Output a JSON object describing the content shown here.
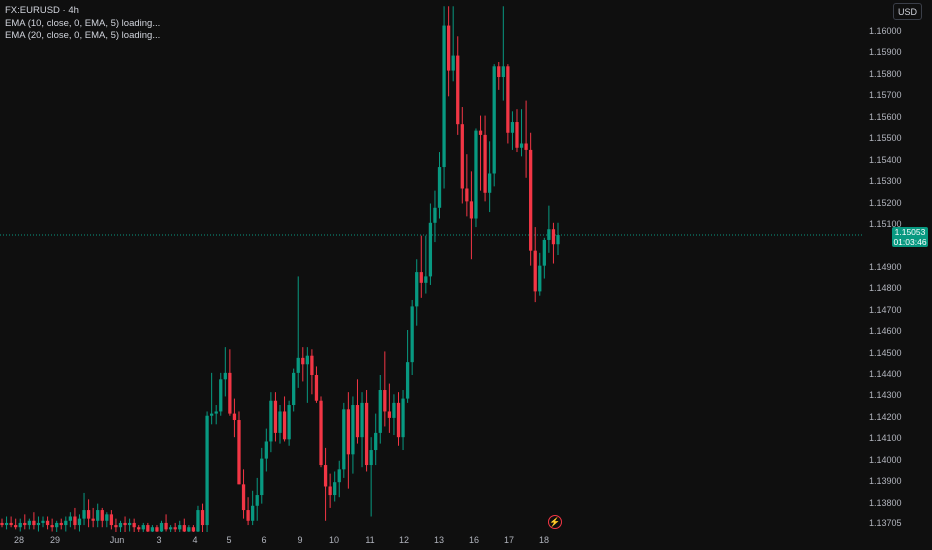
{
  "legend": {
    "symbol": "FX:EURUSD · 4h",
    "ema1": "EMA (10, close, 0, EMA, 5) loading...",
    "ema2": "EMA (20, close, 0, EMA, 5) loading..."
  },
  "currency_button": "USD",
  "last_price": {
    "value": "1.15053",
    "countdown": "01:03:46"
  },
  "colors": {
    "up": "#089981",
    "down": "#f23645",
    "background": "#0f0f0f",
    "price_line": "#089981"
  },
  "price_axis": [
    "1.16000",
    "1.15900",
    "1.15800",
    "1.15700",
    "1.15600",
    "1.15500",
    "1.15400",
    "1.15300",
    "1.15200",
    "1.15100",
    "1.14900",
    "1.14800",
    "1.14700",
    "1.14600",
    "1.14500",
    "1.14400",
    "1.14300",
    "1.14200",
    "1.14100",
    "1.14000",
    "1.13900",
    "1.13800",
    "1.13705"
  ],
  "time_axis": [
    "28",
    "29",
    "Jun",
    "3",
    "4",
    "5",
    "6",
    "9",
    "10",
    "11",
    "12",
    "13",
    "16",
    "17",
    "18"
  ],
  "icons": {
    "flash": "lightning-bolt-icon"
  },
  "chart_data": {
    "type": "candlestick",
    "symbol": "FX:EURUSD",
    "interval": "4h",
    "ylim": [
      1.1365,
      1.1612
    ],
    "last": 1.15053,
    "candles": [
      {
        "o": 1.1371,
        "h": 1.1373,
        "l": 1.1369,
        "c": 1.137
      },
      {
        "o": 1.137,
        "h": 1.1374,
        "l": 1.1368,
        "c": 1.1371
      },
      {
        "o": 1.1371,
        "h": 1.1374,
        "l": 1.1369,
        "c": 1.137
      },
      {
        "o": 1.137,
        "h": 1.1373,
        "l": 1.1368,
        "c": 1.1369
      },
      {
        "o": 1.1369,
        "h": 1.1373,
        "l": 1.1367,
        "c": 1.1371
      },
      {
        "o": 1.1371,
        "h": 1.1375,
        "l": 1.1368,
        "c": 1.137
      },
      {
        "o": 1.137,
        "h": 1.1373,
        "l": 1.1368,
        "c": 1.1372
      },
      {
        "o": 1.1372,
        "h": 1.1376,
        "l": 1.1368,
        "c": 1.137
      },
      {
        "o": 1.137,
        "h": 1.1374,
        "l": 1.1367,
        "c": 1.1371
      },
      {
        "o": 1.1371,
        "h": 1.1374,
        "l": 1.1369,
        "c": 1.1372
      },
      {
        "o": 1.1372,
        "h": 1.1374,
        "l": 1.1368,
        "c": 1.137
      },
      {
        "o": 1.137,
        "h": 1.1373,
        "l": 1.1367,
        "c": 1.1369
      },
      {
        "o": 1.1369,
        "h": 1.1372,
        "l": 1.1366,
        "c": 1.1371
      },
      {
        "o": 1.1371,
        "h": 1.1373,
        "l": 1.1368,
        "c": 1.137
      },
      {
        "o": 1.137,
        "h": 1.1374,
        "l": 1.1367,
        "c": 1.1372
      },
      {
        "o": 1.1372,
        "h": 1.1376,
        "l": 1.1369,
        "c": 1.1374
      },
      {
        "o": 1.1374,
        "h": 1.1378,
        "l": 1.1368,
        "c": 1.137
      },
      {
        "o": 1.137,
        "h": 1.1375,
        "l": 1.1367,
        "c": 1.1373
      },
      {
        "o": 1.1373,
        "h": 1.1385,
        "l": 1.137,
        "c": 1.1377
      },
      {
        "o": 1.1377,
        "h": 1.1382,
        "l": 1.1369,
        "c": 1.1373
      },
      {
        "o": 1.1373,
        "h": 1.1378,
        "l": 1.1369,
        "c": 1.1372
      },
      {
        "o": 1.1372,
        "h": 1.138,
        "l": 1.1369,
        "c": 1.1377
      },
      {
        "o": 1.1377,
        "h": 1.1378,
        "l": 1.1369,
        "c": 1.1372
      },
      {
        "o": 1.1372,
        "h": 1.1376,
        "l": 1.1369,
        "c": 1.1375
      },
      {
        "o": 1.1375,
        "h": 1.1377,
        "l": 1.1368,
        "c": 1.137
      },
      {
        "o": 1.137,
        "h": 1.1373,
        "l": 1.1366,
        "c": 1.1369
      },
      {
        "o": 1.1369,
        "h": 1.1372,
        "l": 1.1366,
        "c": 1.1371
      },
      {
        "o": 1.1371,
        "h": 1.1374,
        "l": 1.1366,
        "c": 1.137
      },
      {
        "o": 1.137,
        "h": 1.1373,
        "l": 1.1367,
        "c": 1.1371
      },
      {
        "o": 1.1371,
        "h": 1.1373,
        "l": 1.1366,
        "c": 1.1369
      },
      {
        "o": 1.1369,
        "h": 1.137,
        "l": 1.1366,
        "c": 1.1368
      },
      {
        "o": 1.1368,
        "h": 1.1371,
        "l": 1.1366,
        "c": 1.137
      },
      {
        "o": 1.137,
        "h": 1.1371,
        "l": 1.1366,
        "c": 1.1367
      },
      {
        "o": 1.1367,
        "h": 1.137,
        "l": 1.1366,
        "c": 1.1369
      },
      {
        "o": 1.1369,
        "h": 1.137,
        "l": 1.1366,
        "c": 1.1367
      },
      {
        "o": 1.1367,
        "h": 1.1372,
        "l": 1.1366,
        "c": 1.1371
      },
      {
        "o": 1.1371,
        "h": 1.1375,
        "l": 1.1367,
        "c": 1.1368
      },
      {
        "o": 1.1368,
        "h": 1.137,
        "l": 1.1366,
        "c": 1.1369
      },
      {
        "o": 1.1369,
        "h": 1.1371,
        "l": 1.1366,
        "c": 1.1368
      },
      {
        "o": 1.1368,
        "h": 1.1372,
        "l": 1.1366,
        "c": 1.137
      },
      {
        "o": 1.137,
        "h": 1.1373,
        "l": 1.1366,
        "c": 1.1367
      },
      {
        "o": 1.1367,
        "h": 1.137,
        "l": 1.1365,
        "c": 1.1369
      },
      {
        "o": 1.1369,
        "h": 1.137,
        "l": 1.1366,
        "c": 1.1367
      },
      {
        "o": 1.1367,
        "h": 1.1379,
        "l": 1.1366,
        "c": 1.1377
      },
      {
        "o": 1.1377,
        "h": 1.138,
        "l": 1.1366,
        "c": 1.137
      },
      {
        "o": 1.137,
        "h": 1.1423,
        "l": 1.1366,
        "c": 1.1421
      },
      {
        "o": 1.1421,
        "h": 1.1441,
        "l": 1.1417,
        "c": 1.1422
      },
      {
        "o": 1.1422,
        "h": 1.1426,
        "l": 1.1417,
        "c": 1.1423
      },
      {
        "o": 1.1423,
        "h": 1.1441,
        "l": 1.1421,
        "c": 1.1438
      },
      {
        "o": 1.1438,
        "h": 1.1453,
        "l": 1.143,
        "c": 1.1441
      },
      {
        "o": 1.1441,
        "h": 1.1452,
        "l": 1.1421,
        "c": 1.1422
      },
      {
        "o": 1.1422,
        "h": 1.1429,
        "l": 1.1411,
        "c": 1.1419
      },
      {
        "o": 1.1419,
        "h": 1.1423,
        "l": 1.1389,
        "c": 1.1389
      },
      {
        "o": 1.1389,
        "h": 1.1396,
        "l": 1.1373,
        "c": 1.1377
      },
      {
        "o": 1.1377,
        "h": 1.1383,
        "l": 1.137,
        "c": 1.1372
      },
      {
        "o": 1.1372,
        "h": 1.1386,
        "l": 1.137,
        "c": 1.1379
      },
      {
        "o": 1.1379,
        "h": 1.1392,
        "l": 1.1372,
        "c": 1.1384
      },
      {
        "o": 1.1384,
        "h": 1.1406,
        "l": 1.138,
        "c": 1.1401
      },
      {
        "o": 1.1401,
        "h": 1.1415,
        "l": 1.1395,
        "c": 1.1409
      },
      {
        "o": 1.1409,
        "h": 1.1432,
        "l": 1.1404,
        "c": 1.1428
      },
      {
        "o": 1.1428,
        "h": 1.1432,
        "l": 1.1409,
        "c": 1.1413
      },
      {
        "o": 1.1413,
        "h": 1.1426,
        "l": 1.1408,
        "c": 1.1423
      },
      {
        "o": 1.1423,
        "h": 1.143,
        "l": 1.1409,
        "c": 1.141
      },
      {
        "o": 1.141,
        "h": 1.1428,
        "l": 1.1407,
        "c": 1.1426
      },
      {
        "o": 1.1426,
        "h": 1.1443,
        "l": 1.1423,
        "c": 1.1441
      },
      {
        "o": 1.1441,
        "h": 1.1486,
        "l": 1.1434,
        "c": 1.1448
      },
      {
        "o": 1.1448,
        "h": 1.1453,
        "l": 1.1437,
        "c": 1.1445
      },
      {
        "o": 1.1445,
        "h": 1.1453,
        "l": 1.1427,
        "c": 1.1449
      },
      {
        "o": 1.1449,
        "h": 1.1452,
        "l": 1.1431,
        "c": 1.144
      },
      {
        "o": 1.144,
        "h": 1.1444,
        "l": 1.1427,
        "c": 1.1428
      },
      {
        "o": 1.1428,
        "h": 1.143,
        "l": 1.1397,
        "c": 1.1398
      },
      {
        "o": 1.1398,
        "h": 1.1406,
        "l": 1.1372,
        "c": 1.1388
      },
      {
        "o": 1.1388,
        "h": 1.1394,
        "l": 1.1378,
        "c": 1.1384
      },
      {
        "o": 1.1384,
        "h": 1.1395,
        "l": 1.1381,
        "c": 1.139
      },
      {
        "o": 1.139,
        "h": 1.14,
        "l": 1.1383,
        "c": 1.1396
      },
      {
        "o": 1.1396,
        "h": 1.1427,
        "l": 1.1392,
        "c": 1.1424
      },
      {
        "o": 1.1424,
        "h": 1.1432,
        "l": 1.1387,
        "c": 1.1403
      },
      {
        "o": 1.1403,
        "h": 1.143,
        "l": 1.1394,
        "c": 1.1426
      },
      {
        "o": 1.1426,
        "h": 1.1438,
        "l": 1.1408,
        "c": 1.1411
      },
      {
        "o": 1.1411,
        "h": 1.1432,
        "l": 1.1397,
        "c": 1.1427
      },
      {
        "o": 1.1427,
        "h": 1.1433,
        "l": 1.1395,
        "c": 1.1398
      },
      {
        "o": 1.1398,
        "h": 1.1411,
        "l": 1.1374,
        "c": 1.1405
      },
      {
        "o": 1.1405,
        "h": 1.1422,
        "l": 1.1398,
        "c": 1.1413
      },
      {
        "o": 1.1413,
        "h": 1.144,
        "l": 1.1408,
        "c": 1.1433
      },
      {
        "o": 1.1433,
        "h": 1.1451,
        "l": 1.1416,
        "c": 1.1423
      },
      {
        "o": 1.1423,
        "h": 1.1436,
        "l": 1.1413,
        "c": 1.142
      },
      {
        "o": 1.142,
        "h": 1.1431,
        "l": 1.1412,
        "c": 1.1427
      },
      {
        "o": 1.1427,
        "h": 1.1432,
        "l": 1.1407,
        "c": 1.1411
      },
      {
        "o": 1.1411,
        "h": 1.1433,
        "l": 1.1405,
        "c": 1.1429
      },
      {
        "o": 1.1429,
        "h": 1.1461,
        "l": 1.1427,
        "c": 1.1446
      },
      {
        "o": 1.1446,
        "h": 1.1475,
        "l": 1.144,
        "c": 1.1472
      },
      {
        "o": 1.1472,
        "h": 1.1494,
        "l": 1.1463,
        "c": 1.1488
      },
      {
        "o": 1.1488,
        "h": 1.1505,
        "l": 1.1476,
        "c": 1.1483
      },
      {
        "o": 1.1483,
        "h": 1.1505,
        "l": 1.1478,
        "c": 1.1486
      },
      {
        "o": 1.1486,
        "h": 1.152,
        "l": 1.1482,
        "c": 1.1511
      },
      {
        "o": 1.1511,
        "h": 1.1526,
        "l": 1.1502,
        "c": 1.1518
      },
      {
        "o": 1.1518,
        "h": 1.1544,
        "l": 1.1513,
        "c": 1.1537
      },
      {
        "o": 1.1537,
        "h": 1.1612,
        "l": 1.1527,
        "c": 1.1603
      },
      {
        "o": 1.1603,
        "h": 1.1612,
        "l": 1.157,
        "c": 1.1582
      },
      {
        "o": 1.1582,
        "h": 1.1612,
        "l": 1.1577,
        "c": 1.1589
      },
      {
        "o": 1.1589,
        "h": 1.1598,
        "l": 1.1552,
        "c": 1.1557
      },
      {
        "o": 1.1557,
        "h": 1.1565,
        "l": 1.152,
        "c": 1.1527
      },
      {
        "o": 1.1527,
        "h": 1.1543,
        "l": 1.1514,
        "c": 1.1521
      },
      {
        "o": 1.1521,
        "h": 1.1535,
        "l": 1.1494,
        "c": 1.1513
      },
      {
        "o": 1.1513,
        "h": 1.1555,
        "l": 1.1509,
        "c": 1.1554
      },
      {
        "o": 1.1554,
        "h": 1.1561,
        "l": 1.1526,
        "c": 1.1552
      },
      {
        "o": 1.1552,
        "h": 1.1561,
        "l": 1.1521,
        "c": 1.1525
      },
      {
        "o": 1.1525,
        "h": 1.1549,
        "l": 1.1516,
        "c": 1.1534
      },
      {
        "o": 1.1534,
        "h": 1.1585,
        "l": 1.1528,
        "c": 1.1584
      },
      {
        "o": 1.1584,
        "h": 1.1586,
        "l": 1.1573,
        "c": 1.1579
      },
      {
        "o": 1.1579,
        "h": 1.1612,
        "l": 1.1568,
        "c": 1.1584
      },
      {
        "o": 1.1584,
        "h": 1.1585,
        "l": 1.1548,
        "c": 1.1553
      },
      {
        "o": 1.1553,
        "h": 1.1563,
        "l": 1.1545,
        "c": 1.1558
      },
      {
        "o": 1.1558,
        "h": 1.1564,
        "l": 1.1544,
        "c": 1.1546
      },
      {
        "o": 1.1546,
        "h": 1.1564,
        "l": 1.1542,
        "c": 1.1548
      },
      {
        "o": 1.1548,
        "h": 1.1568,
        "l": 1.1532,
        "c": 1.1545
      },
      {
        "o": 1.1545,
        "h": 1.1553,
        "l": 1.1491,
        "c": 1.1498
      },
      {
        "o": 1.1498,
        "h": 1.1509,
        "l": 1.1474,
        "c": 1.1479
      },
      {
        "o": 1.1479,
        "h": 1.1497,
        "l": 1.1477,
        "c": 1.1491
      },
      {
        "o": 1.1491,
        "h": 1.1504,
        "l": 1.1485,
        "c": 1.1503
      },
      {
        "o": 1.1503,
        "h": 1.1519,
        "l": 1.1497,
        "c": 1.1508
      },
      {
        "o": 1.1508,
        "h": 1.1511,
        "l": 1.1492,
        "c": 1.1501
      },
      {
        "o": 1.1501,
        "h": 1.1511,
        "l": 1.1496,
        "c": 1.15053
      }
    ]
  }
}
